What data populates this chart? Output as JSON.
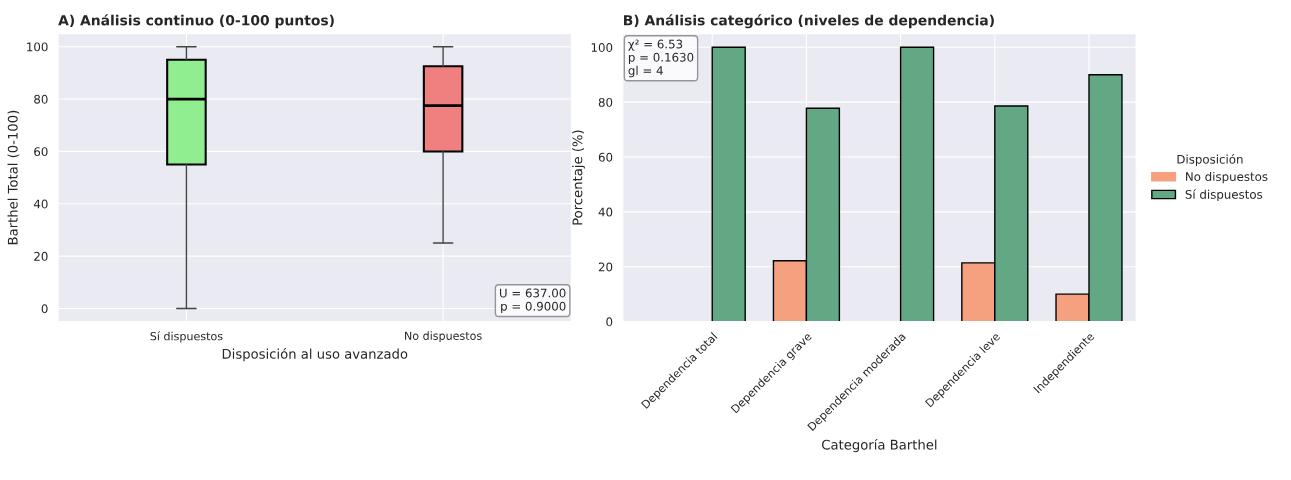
{
  "chart_data": [
    {
      "type": "box",
      "title": "A) Análisis continuo (0-100 puntos)",
      "xlabel": "Disposición al uso avanzado",
      "ylabel": "Barthel Total (0-100)",
      "categories": [
        "Sí dispuestos",
        "No dispuestos"
      ],
      "colors": [
        "#90ee90",
        "#f08080"
      ],
      "boxes": [
        {
          "low": 0,
          "q1": 55,
          "median": 80,
          "q3": 95,
          "high": 100
        },
        {
          "low": 25,
          "q1": 60,
          "median": 77.5,
          "q3": 92.5,
          "high": 100
        }
      ],
      "ylim": [
        -5,
        105
      ],
      "yticks": [
        0,
        20,
        40,
        60,
        80,
        100
      ],
      "grid": true,
      "annotations": [
        "U = 637.00\np = 0.9000"
      ]
    },
    {
      "type": "bar",
      "title": "B) Análisis categórico (niveles de dependencia)",
      "xlabel": "Categoría Barthel",
      "ylabel": "Porcentaje (%)",
      "categories": [
        "Dependencia total",
        "Dependencia grave",
        "Dependencia moderada",
        "Dependencia leve",
        "Independiente"
      ],
      "series": [
        {
          "name": "No dispuestos",
          "color": "#f5a07e",
          "values": [
            0,
            22.2,
            0,
            21.4,
            10
          ]
        },
        {
          "name": "Sí dispuestos",
          "color": "#63a884",
          "values": [
            100,
            77.8,
            100,
            78.6,
            90
          ]
        }
      ],
      "ylim": [
        0,
        105
      ],
      "yticks": [
        0,
        20,
        40,
        60,
        80,
        100
      ],
      "grid": true,
      "legend": "right",
      "legend_title": "Disposición",
      "annotations": [
        "χ² = 6.53\np = 0.1630\ngl = 4"
      ]
    }
  ]
}
